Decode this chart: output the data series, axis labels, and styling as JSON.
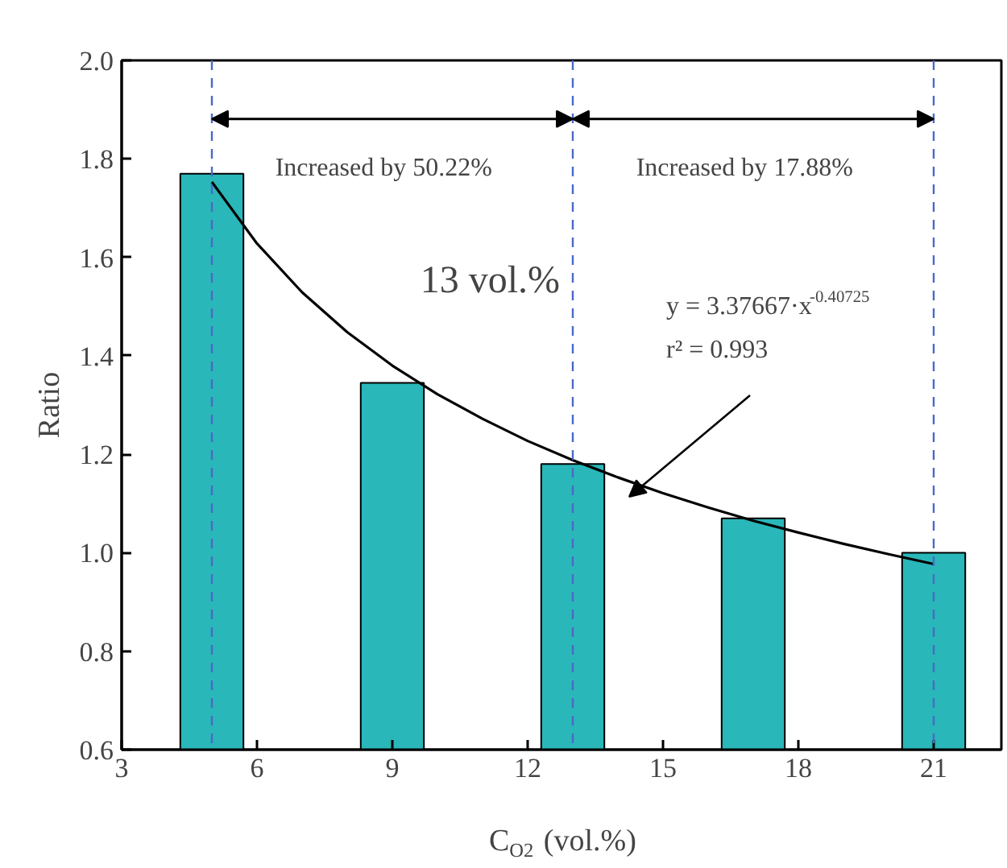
{
  "chart_data": {
    "type": "bar",
    "xlabel": "C$_{O2}$ (vol.%)",
    "ylabel": "Ratio",
    "x": [
      5,
      9,
      13,
      17,
      21
    ],
    "series": [
      {
        "color": "#2ab7b9",
        "values": [
          1.77,
          1.345,
          1.18,
          1.07,
          1.0
        ]
      },
      {
        "type": "line",
        "color": "#000000",
        "x": [
          5,
          6,
          7,
          8,
          9,
          10,
          11,
          12,
          13,
          14,
          15,
          16,
          17,
          18,
          19,
          20,
          21
        ],
        "values": [
          1.753,
          1.628,
          1.529,
          1.448,
          1.38,
          1.322,
          1.272,
          1.227,
          1.188,
          1.153,
          1.121,
          1.092,
          1.065,
          1.041,
          1.018,
          0.997,
          0.977
        ]
      }
    ],
    "xlim": [
      3,
      22.5
    ],
    "xticks": [
      3,
      6,
      9,
      12,
      15,
      18,
      21
    ],
    "ylim": [
      0.6,
      2.0
    ],
    "yticks": [
      0.6,
      0.8,
      {
        "value": 1.0,
        "label": "1.0"
      },
      1.2,
      1.4,
      1.6,
      1.8,
      {
        "value": 2.0,
        "label": "2.0"
      }
    ],
    "ref_lines": [
      {
        "axis": "x",
        "value": 5,
        "color": "#4a6ac8",
        "line_style": "dashed"
      },
      {
        "axis": "x",
        "value": 13,
        "color": "#4a6ac8",
        "line_style": "dashed"
      },
      {
        "axis": "x",
        "value": 21,
        "color": "#4a6ac8",
        "line_style": "dashed"
      }
    ],
    "annotations": [
      "Increased by 50.22%",
      "Increased by 17.88%",
      "13 vol.%",
      "y = 3.37667·x$^{-0.40725}$",
      "r² = 0.993"
    ],
    "grid": false
  }
}
